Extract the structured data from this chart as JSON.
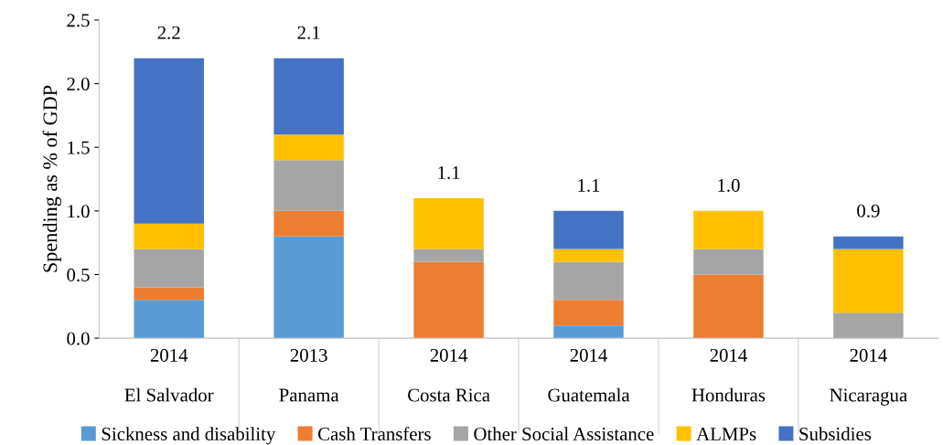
{
  "chart_data": {
    "type": "bar",
    "stacked": true,
    "ylabel": "Spending as % of GDP",
    "categories": [
      "2014\n\nEl Salvador",
      "2013\n\nPanama",
      "2014\n\nCosta Rica",
      "2014\n\nGuatemala",
      "2014\n\nHonduras",
      "2014\n\nNicaragua"
    ],
    "series": [
      {
        "name": "Sickness and disability",
        "color": "#5b9bd5",
        "values": [
          0.3,
          0.8,
          0,
          0.1,
          0,
          0
        ]
      },
      {
        "name": "Cash Transfers",
        "color": "#ed7d31",
        "values": [
          0.1,
          0.2,
          0.6,
          0.2,
          0.5,
          0
        ]
      },
      {
        "name": "Other Social Assistance",
        "color": "#a5a5a5",
        "values": [
          0.3,
          0.4,
          0.1,
          0.3,
          0.2,
          0.2
        ]
      },
      {
        "name": "ALMPs",
        "color": "#ffc000",
        "values": [
          0.2,
          0.2,
          0.4,
          0.1,
          0.3,
          0.5
        ]
      },
      {
        "name": "Subsidies",
        "color": "#4472c4",
        "values": [
          1.3,
          0.6,
          0,
          0.3,
          0,
          0.1
        ]
      }
    ],
    "totals": [
      "2.2",
      "2.1",
      "1.1",
      "1.1",
      "1.0",
      "0.9"
    ],
    "ylim": [
      0,
      2.5
    ],
    "yticks": [
      {
        "value": 0,
        "label": "0.0"
      },
      {
        "value": 0.5,
        "label": "0.5"
      },
      {
        "value": 1,
        "label": "1.0"
      },
      {
        "value": 1.5,
        "label": "1.5"
      },
      {
        "value": 2,
        "label": "2.0"
      },
      {
        "value": 2.5,
        "label": "2.5"
      }
    ],
    "grid": false,
    "legend": "bottom"
  }
}
